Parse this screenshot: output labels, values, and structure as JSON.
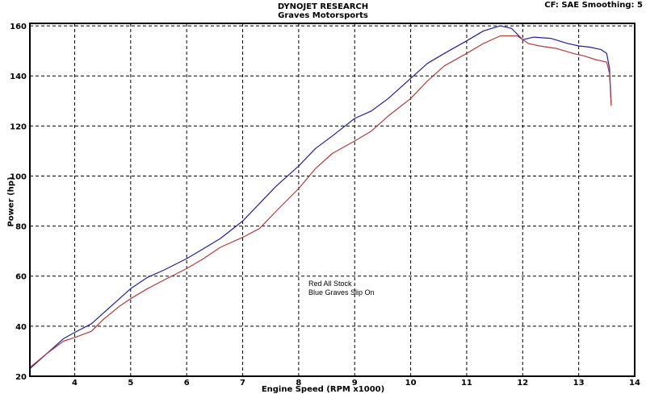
{
  "header": {
    "title": "DYNOJET RESEARCH",
    "subtitle": "Graves Motorsports",
    "corner_info": "CF: SAE   Smoothing: 5"
  },
  "annotations": {
    "line1": "Red All Stock",
    "line2": "Blue Graves Slip On"
  },
  "chart_data": {
    "type": "line",
    "title": "DYNOJET RESEARCH",
    "subtitle": "Graves Motorsports",
    "xlabel": "Engine Speed (RPM x1000)",
    "ylabel": "Power (hp)",
    "xlim": [
      3.2,
      14
    ],
    "ylim": [
      20,
      161
    ],
    "x_ticks": [
      4,
      5,
      6,
      7,
      8,
      9,
      10,
      11,
      12,
      13,
      14
    ],
    "y_ticks": [
      20,
      40,
      60,
      80,
      100,
      120,
      140,
      160
    ],
    "grid": true,
    "grid_style": "dashed",
    "series": [
      {
        "color": "#1f1f9e",
        "points": [
          [
            3.2,
            23
          ],
          [
            3.5,
            29
          ],
          [
            3.8,
            35
          ],
          [
            4.0,
            37.5
          ],
          [
            4.3,
            41
          ],
          [
            4.5,
            45
          ],
          [
            4.8,
            51
          ],
          [
            5.0,
            55
          ],
          [
            5.3,
            59.5
          ],
          [
            5.6,
            62.5
          ],
          [
            6.0,
            67
          ],
          [
            6.3,
            71
          ],
          [
            6.6,
            75
          ],
          [
            7.0,
            82
          ],
          [
            7.3,
            89
          ],
          [
            7.6,
            96
          ],
          [
            8.0,
            104
          ],
          [
            8.3,
            111
          ],
          [
            8.6,
            116
          ],
          [
            9.0,
            123
          ],
          [
            9.3,
            126
          ],
          [
            9.6,
            131
          ],
          [
            10.0,
            139
          ],
          [
            10.3,
            145
          ],
          [
            10.6,
            149
          ],
          [
            11.0,
            154
          ],
          [
            11.3,
            158
          ],
          [
            11.6,
            160
          ],
          [
            11.8,
            159
          ],
          [
            12.0,
            154.5
          ],
          [
            12.2,
            155.5
          ],
          [
            12.5,
            155
          ],
          [
            12.8,
            153
          ],
          [
            13.0,
            152
          ],
          [
            13.2,
            151.5
          ],
          [
            13.4,
            150.5
          ],
          [
            13.5,
            149
          ],
          [
            13.55,
            143
          ],
          [
            13.58,
            129
          ]
        ]
      },
      {
        "color": "#b83a3a",
        "points": [
          [
            3.2,
            23.5
          ],
          [
            3.5,
            29
          ],
          [
            3.8,
            34
          ],
          [
            4.0,
            35.5
          ],
          [
            4.3,
            38
          ],
          [
            4.5,
            42.5
          ],
          [
            4.8,
            48
          ],
          [
            5.0,
            51
          ],
          [
            5.3,
            55
          ],
          [
            5.6,
            58.5
          ],
          [
            6.0,
            63
          ],
          [
            6.3,
            67
          ],
          [
            6.6,
            71.5
          ],
          [
            7.0,
            75.5
          ],
          [
            7.3,
            79
          ],
          [
            7.6,
            86
          ],
          [
            8.0,
            95
          ],
          [
            8.3,
            103
          ],
          [
            8.6,
            109
          ],
          [
            9.0,
            114
          ],
          [
            9.3,
            118
          ],
          [
            9.6,
            124
          ],
          [
            10.0,
            131
          ],
          [
            10.3,
            138
          ],
          [
            10.6,
            144
          ],
          [
            11.0,
            149
          ],
          [
            11.3,
            153
          ],
          [
            11.6,
            156
          ],
          [
            11.9,
            156
          ],
          [
            12.1,
            153
          ],
          [
            12.3,
            152
          ],
          [
            12.6,
            151
          ],
          [
            12.9,
            149
          ],
          [
            13.1,
            148
          ],
          [
            13.3,
            146.5
          ],
          [
            13.5,
            145.5
          ],
          [
            13.55,
            141
          ],
          [
            13.58,
            128
          ]
        ]
      }
    ]
  }
}
